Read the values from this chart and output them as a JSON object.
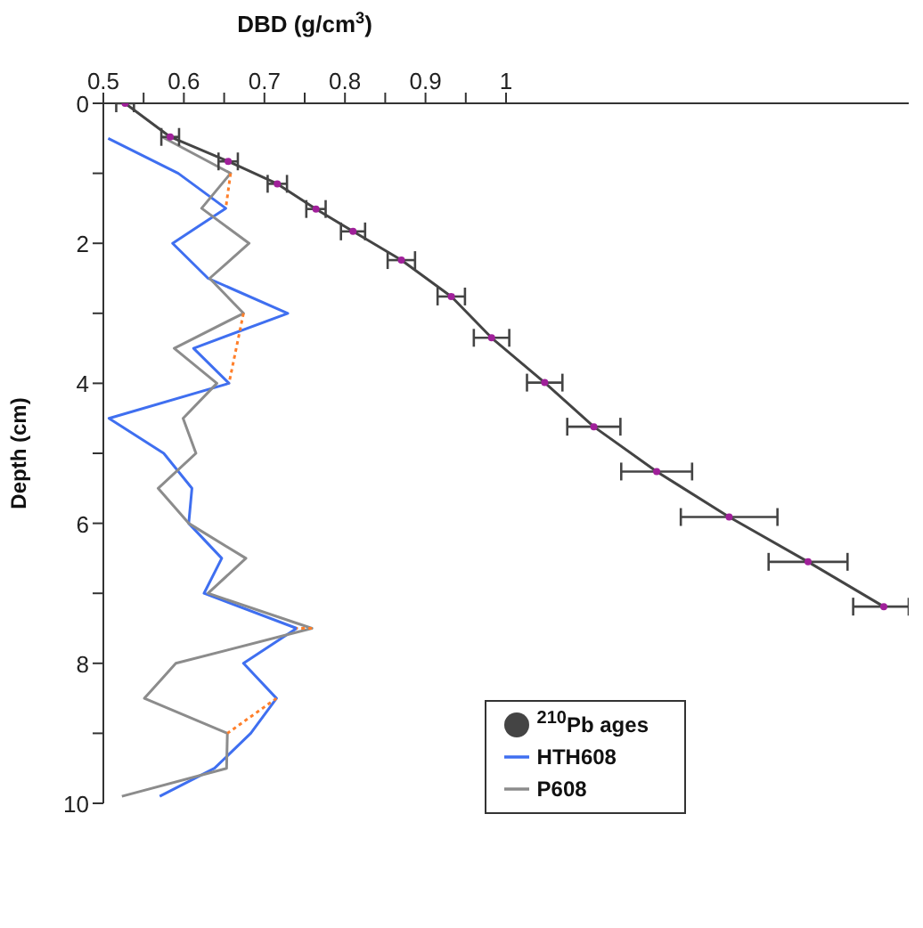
{
  "chart_data": {
    "type": "line",
    "xlabel": "DBD (g/cm$^{3}$)",
    "ylabel": "Depth (cm)",
    "xlim": [
      0.5,
      1.5
    ],
    "ylim": [
      10,
      0
    ],
    "xticks": [
      0.5,
      {
        "value": 0.55,
        "label": null
      },
      0.6,
      {
        "value": 0.65,
        "label": null
      },
      0.7,
      {
        "value": 0.75,
        "label": null
      },
      0.8,
      {
        "value": 0.85,
        "label": null
      },
      0.9,
      {
        "value": 0.95,
        "label": null
      },
      1
    ],
    "yticks": [
      0,
      {
        "value": 1,
        "label": null
      },
      2,
      {
        "value": 3,
        "label": null
      },
      4,
      {
        "value": 5,
        "label": null
      },
      6,
      {
        "value": 7,
        "label": null
      },
      8,
      {
        "value": 9,
        "label": null
      },
      10
    ],
    "legend": "bottom right",
    "series": [
      {
        "name": "$^{210}$Pb ages",
        "color": "#a0209a",
        "marker": "circle",
        "x": [
          0.527,
          0.583,
          0.655,
          0.716,
          0.764,
          0.81,
          0.87,
          0.932,
          0.982,
          1.048,
          1.109,
          1.187,
          1.277,
          1.375,
          1.469
        ],
        "values": [
          0,
          0.48,
          0.83,
          1.15,
          1.51,
          1.83,
          2.24,
          2.76,
          3.35,
          3.99,
          4.62,
          5.26,
          5.91,
          6.55,
          7.19
        ],
        "xerrors": [
          0.011,
          0.011,
          0.012,
          0.012,
          0.012,
          0.015,
          0.017,
          0.017,
          0.022,
          0.022,
          0.033,
          0.044,
          0.06,
          0.049,
          [
            1.431,
            1.5
          ]
        ]
      },
      {
        "name": "HTH608",
        "color": "#3f6ff0",
        "marker": "none",
        "x": [
          0.506,
          0.593,
          0.652,
          0.586,
          0.63,
          0.729,
          0.612,
          0.656,
          0.507,
          0.575,
          0.61,
          0.606,
          0.647,
          0.625,
          0.74,
          0.674,
          0.715,
          0.683,
          0.638,
          0.57
        ],
        "values": [
          0.5,
          1,
          1.5,
          2,
          2.5,
          3,
          3.5,
          4,
          4.5,
          5,
          5.5,
          6,
          6.5,
          7,
          7.5,
          8,
          8.5,
          9,
          9.5,
          9.9
        ]
      },
      {
        "name": "P608",
        "color": "#8c8c8c",
        "marker": "none",
        "x": [
          0.573,
          0.658,
          0.622,
          0.681,
          0.632,
          0.674,
          0.588,
          0.641,
          0.599,
          0.615,
          0.568,
          0.606,
          0.677,
          0.63,
          0.759,
          0.59,
          0.551,
          0.654,
          0.653,
          0.523
        ],
        "values": [
          0.48,
          1,
          1.5,
          2,
          2.5,
          3,
          3.5,
          4,
          4.5,
          5,
          5.5,
          6,
          6.5,
          7,
          7.5,
          8,
          8.5,
          9,
          9.5,
          9.9
        ]
      },
      {
        "color": "#ff7f2a",
        "marker": "none",
        "line_style": "dotted",
        "x": [
          0.658,
          0.652,
          null,
          0.674,
          0.656,
          null,
          0.759,
          0.74,
          null,
          0.715,
          0.654
        ],
        "values": [
          1,
          1.5,
          null,
          3,
          4,
          null,
          7.5,
          7.5,
          null,
          8.5,
          9
        ]
      }
    ]
  }
}
